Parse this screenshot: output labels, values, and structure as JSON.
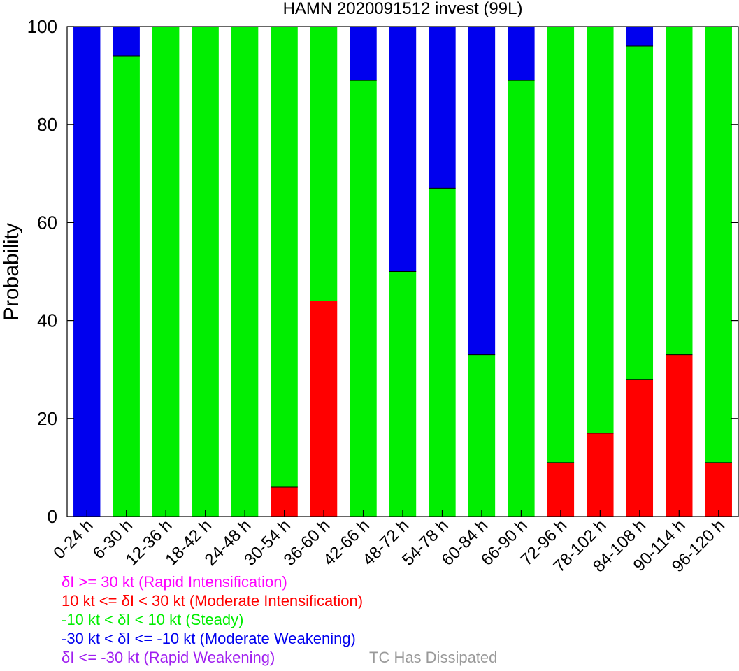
{
  "chart_data": {
    "type": "bar",
    "stacked": true,
    "title": "HAMN 2020091512 invest (99L)",
    "xlabel": "",
    "ylabel": "Probability",
    "ylim": [
      0,
      100
    ],
    "yticks": [
      0,
      20,
      40,
      60,
      80,
      100
    ],
    "grid": false,
    "categories": [
      "0-24 h",
      "6-30 h",
      "12-36 h",
      "18-42 h",
      "24-48 h",
      "30-54 h",
      "36-60 h",
      "42-66 h",
      "48-72 h",
      "54-78 h",
      "60-84 h",
      "66-90 h",
      "72-96 h",
      "78-102 h",
      "84-108 h",
      "90-114 h",
      "96-120 h"
    ],
    "series": [
      {
        "name": "10 kt <= δI < 30 kt (Moderate Intensification)",
        "color": "#ff0000",
        "values": [
          0,
          0,
          0,
          0,
          0,
          6,
          44,
          0,
          0,
          0,
          0,
          0,
          11,
          17,
          28,
          33,
          11
        ]
      },
      {
        "name": "-10 kt < δI < 10 kt (Steady)",
        "color": "#00ee00",
        "values": [
          0,
          94,
          100,
          100,
          100,
          94,
          56,
          89,
          50,
          67,
          33,
          89,
          89,
          83,
          68,
          67,
          89
        ]
      },
      {
        "name": "-30 kt < δI <= -10 kt (Moderate Weakening)",
        "color": "#0000ee",
        "values": [
          100,
          6,
          0,
          0,
          0,
          0,
          0,
          11,
          50,
          33,
          67,
          11,
          0,
          0,
          4,
          0,
          0
        ]
      }
    ],
    "legend": [
      {
        "text": "δI >= 30 kt (Rapid Intensification)",
        "color": "#ff00ff"
      },
      {
        "text": "10 kt <= δI < 30 kt (Moderate Intensification)",
        "color": "#ff0000"
      },
      {
        "text": "-10 kt < δI < 10 kt (Steady)",
        "color": "#00ee00"
      },
      {
        "text": "-30 kt < δI <= -10 kt (Moderate Weakening)",
        "color": "#0000ee"
      },
      {
        "text": "δI <= -30 kt (Rapid Weakening)",
        "color": "#a020f0"
      },
      {
        "text": "TC Has Dissipated",
        "color": "#999999"
      }
    ],
    "legend_placement": "bottom-left"
  }
}
